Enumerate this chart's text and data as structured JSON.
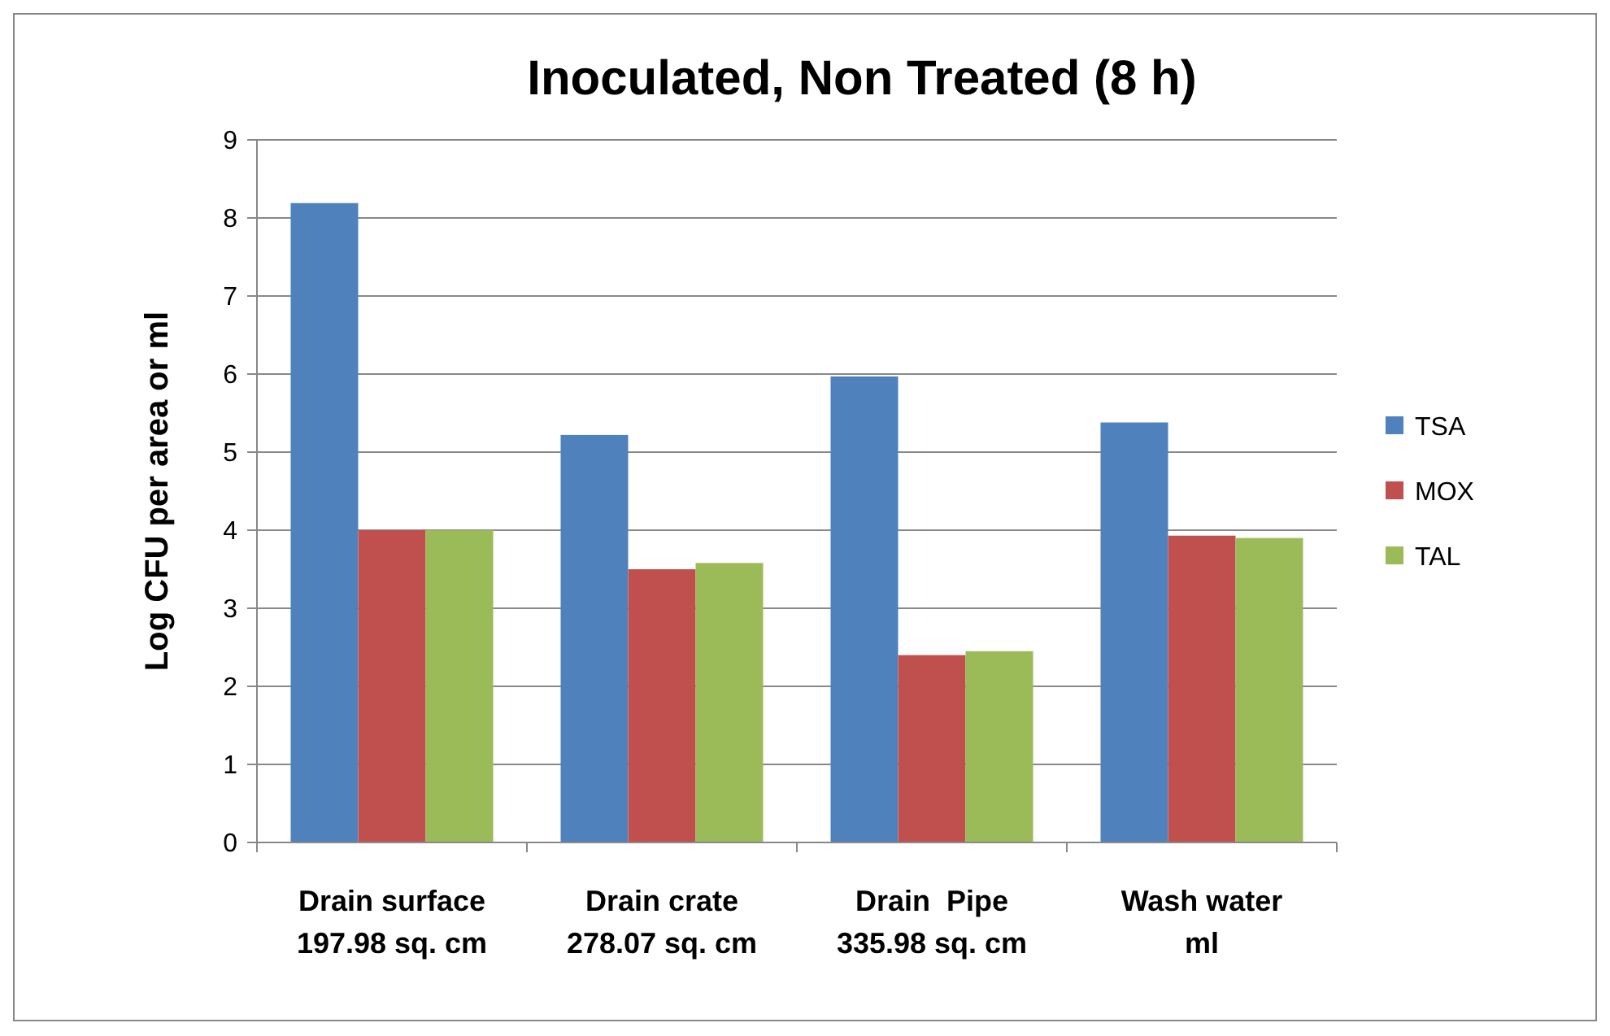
{
  "chart_data": {
    "type": "bar",
    "title": "Inoculated, Non Treated (8 h)",
    "ylabel": "Log CFU per area or ml",
    "categories": [
      "Drain surface\n197.98 sq. cm",
      "Drain crate\n278.07 sq. cm",
      "Drain  Pipe\n335.98 sq. cm",
      "Wash water\nml"
    ],
    "series": [
      {
        "name": "TSA",
        "color": "#4f81bd",
        "values": [
          8.19,
          5.22,
          5.97,
          5.38
        ]
      },
      {
        "name": "MOX",
        "color": "#c0504d",
        "values": [
          4.0,
          3.5,
          2.4,
          3.93
        ]
      },
      {
        "name": "TAL",
        "color": "#9bbb59",
        "values": [
          4.0,
          3.58,
          2.45,
          3.9
        ]
      }
    ],
    "ylim": [
      0,
      9
    ],
    "yticks": [
      0,
      1,
      2,
      3,
      4,
      5,
      6,
      7,
      8,
      9
    ],
    "grid": "y",
    "legend": "right"
  }
}
